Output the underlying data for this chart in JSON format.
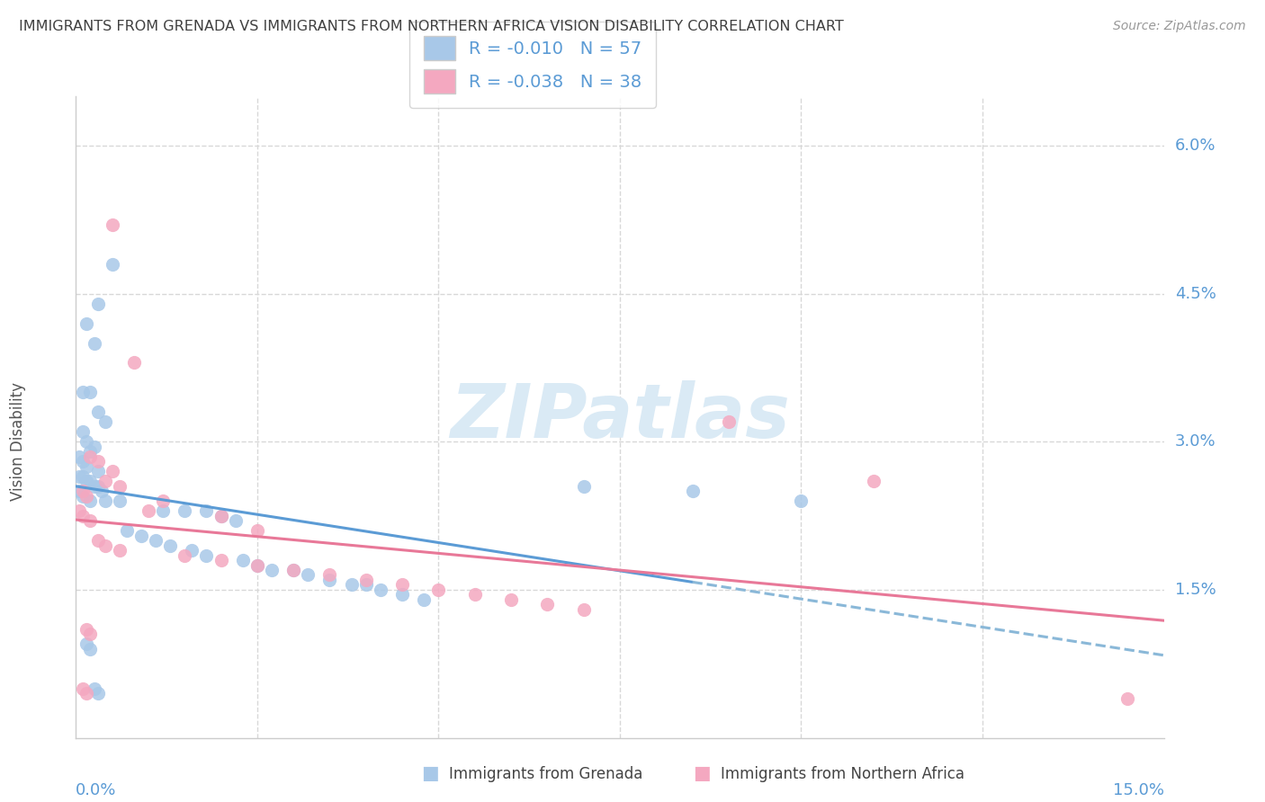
{
  "title": "IMMIGRANTS FROM GRENADA VS IMMIGRANTS FROM NORTHERN AFRICA VISION DISABILITY CORRELATION CHART",
  "source": "Source: ZipAtlas.com",
  "ylabel": "Vision Disability",
  "xlim": [
    0.0,
    15.0
  ],
  "ylim": [
    0.0,
    6.5
  ],
  "ytick_vals": [
    1.5,
    3.0,
    4.5,
    6.0
  ],
  "ytick_labels": [
    "1.5%",
    "3.0%",
    "4.5%",
    "6.0%"
  ],
  "xtick_vals": [
    0.0,
    2.5,
    5.0,
    7.5,
    10.0,
    12.5,
    15.0
  ],
  "legend_entries": [
    {
      "label_r": "R = ",
      "r_val": "-0.010",
      "label_n": "   N = ",
      "n_val": "57",
      "color": "#a8c8e8"
    },
    {
      "label_r": "R = ",
      "r_val": "-0.038",
      "label_n": "   N = ",
      "n_val": "38",
      "color": "#f4a8c0"
    }
  ],
  "legend_labels": [
    "Immigrants from Grenada",
    "Immigrants from Northern Africa"
  ],
  "grenada_color": "#a8c8e8",
  "northern_africa_color": "#f4a8c0",
  "grenada_scatter": [
    [
      0.3,
      4.4
    ],
    [
      0.5,
      4.8
    ],
    [
      0.15,
      4.2
    ],
    [
      0.1,
      3.5
    ],
    [
      0.25,
      4.0
    ],
    [
      0.2,
      3.5
    ],
    [
      0.3,
      3.3
    ],
    [
      0.4,
      3.2
    ],
    [
      0.1,
      3.1
    ],
    [
      0.15,
      3.0
    ],
    [
      0.25,
      2.95
    ],
    [
      0.2,
      2.9
    ],
    [
      0.05,
      2.85
    ],
    [
      0.1,
      2.8
    ],
    [
      0.15,
      2.75
    ],
    [
      0.3,
      2.7
    ],
    [
      0.05,
      2.65
    ],
    [
      0.1,
      2.65
    ],
    [
      0.15,
      2.6
    ],
    [
      0.2,
      2.6
    ],
    [
      0.25,
      2.55
    ],
    [
      0.3,
      2.55
    ],
    [
      0.35,
      2.5
    ],
    [
      0.05,
      2.5
    ],
    [
      0.1,
      2.45
    ],
    [
      0.2,
      2.4
    ],
    [
      0.4,
      2.4
    ],
    [
      0.6,
      2.4
    ],
    [
      1.2,
      2.3
    ],
    [
      1.5,
      2.3
    ],
    [
      1.8,
      2.3
    ],
    [
      2.0,
      2.25
    ],
    [
      2.2,
      2.2
    ],
    [
      0.7,
      2.1
    ],
    [
      0.9,
      2.05
    ],
    [
      1.1,
      2.0
    ],
    [
      1.3,
      1.95
    ],
    [
      1.6,
      1.9
    ],
    [
      1.8,
      1.85
    ],
    [
      2.3,
      1.8
    ],
    [
      2.5,
      1.75
    ],
    [
      2.7,
      1.7
    ],
    [
      3.0,
      1.7
    ],
    [
      3.2,
      1.65
    ],
    [
      3.5,
      1.6
    ],
    [
      3.8,
      1.55
    ],
    [
      4.0,
      1.55
    ],
    [
      4.2,
      1.5
    ],
    [
      4.5,
      1.45
    ],
    [
      4.8,
      1.4
    ],
    [
      0.15,
      0.95
    ],
    [
      0.2,
      0.9
    ],
    [
      0.25,
      0.5
    ],
    [
      0.3,
      0.45
    ],
    [
      7.0,
      2.55
    ],
    [
      8.5,
      2.5
    ],
    [
      10.0,
      2.4
    ]
  ],
  "northern_africa_scatter": [
    [
      0.5,
      5.2
    ],
    [
      0.8,
      3.8
    ],
    [
      0.2,
      2.85
    ],
    [
      0.3,
      2.8
    ],
    [
      0.5,
      2.7
    ],
    [
      0.1,
      2.5
    ],
    [
      0.15,
      2.45
    ],
    [
      0.05,
      2.3
    ],
    [
      0.1,
      2.25
    ],
    [
      0.2,
      2.2
    ],
    [
      1.0,
      2.3
    ],
    [
      2.0,
      2.25
    ],
    [
      2.5,
      2.1
    ],
    [
      0.3,
      2.0
    ],
    [
      0.4,
      1.95
    ],
    [
      0.6,
      1.9
    ],
    [
      1.5,
      1.85
    ],
    [
      2.0,
      1.8
    ],
    [
      2.5,
      1.75
    ],
    [
      3.0,
      1.7
    ],
    [
      3.5,
      1.65
    ],
    [
      4.0,
      1.6
    ],
    [
      4.5,
      1.55
    ],
    [
      5.0,
      1.5
    ],
    [
      5.5,
      1.45
    ],
    [
      6.0,
      1.4
    ],
    [
      6.5,
      1.35
    ],
    [
      7.0,
      1.3
    ],
    [
      0.15,
      1.1
    ],
    [
      0.2,
      1.05
    ],
    [
      0.1,
      0.5
    ],
    [
      0.15,
      0.45
    ],
    [
      9.0,
      3.2
    ],
    [
      11.0,
      2.6
    ],
    [
      14.5,
      0.4
    ],
    [
      0.6,
      2.55
    ],
    [
      1.2,
      2.4
    ],
    [
      0.4,
      2.6
    ]
  ],
  "background_color": "#ffffff",
  "watermark_text": "ZIPatlas",
  "watermark_color": "#daeaf5",
  "grid_color": "#d8d8d8",
  "title_color": "#404040",
  "axis_label_color": "#5b9bd5",
  "trend_blue_color": "#5b9bd5",
  "trend_blue_dash_color": "#8ab8d8",
  "trend_pink_color": "#e87898"
}
